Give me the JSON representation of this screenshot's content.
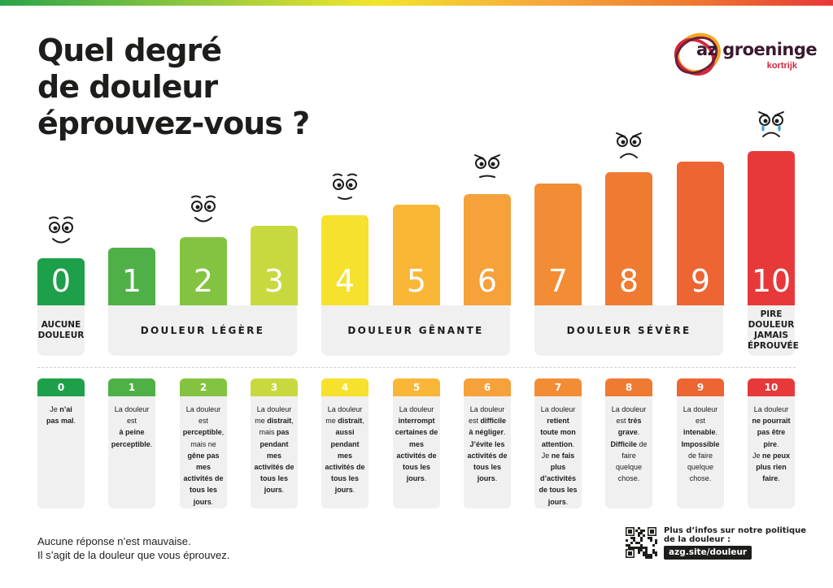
{
  "title_lines": [
    "Quel degré",
    "de douleur",
    "éprouvez-vous ?"
  ],
  "logo": {
    "brand": "az groeninge",
    "city": "kortrijk"
  },
  "chart_data": {
    "type": "bar",
    "categories": [
      "0",
      "1",
      "2",
      "3",
      "4",
      "5",
      "6",
      "7",
      "8",
      "9",
      "10"
    ],
    "values": [
      0,
      1,
      2,
      3,
      4,
      5,
      6,
      7,
      8,
      9,
      10
    ],
    "colors": [
      "#1ea04a",
      "#4fb048",
      "#84c341",
      "#c8d93f",
      "#f6e12c",
      "#f9b637",
      "#f6a13a",
      "#f28c35",
      "#ef7a32",
      "#ec6533",
      "#e7393a"
    ],
    "faces_at": [
      0,
      2,
      4,
      6,
      8,
      10
    ]
  },
  "bands": {
    "none": [
      "AUCUNE",
      "DOULEUR"
    ],
    "light": "DOULEUR LÉGÈRE",
    "bothersome": "DOULEUR GÊNANTE",
    "severe": "DOULEUR SÉVÈRE",
    "worst": [
      "PIRE",
      "DOULEUR",
      "JAMAIS",
      "ÉPROUVÉE"
    ]
  },
  "cards": [
    {
      "level": "0",
      "html": "Je <b>n’ai</b><br><b>pas mal</b>."
    },
    {
      "level": "1",
      "html": "La douleur<br>est<br><b>à peine</b><br><b>perceptible</b>."
    },
    {
      "level": "2",
      "html": "La douleur<br>est<br><b>perceptible</b>,<br>mais ne<br><b>gêne pas</b><br><b>mes</b><br><b>activités de</b><br><b>tous les</b><br><b>jours</b>."
    },
    {
      "level": "3",
      "html": "La douleur<br>me <b>distrait</b>,<br>mais <b>pas</b><br><b>pendant</b><br><b>mes</b><br><b>activités de</b><br><b>tous les</b><br><b>jours</b>."
    },
    {
      "level": "4",
      "html": "La douleur<br>me <b>distrait</b>,<br><b>aussi</b><br><b>pendant</b><br><b>mes</b><br><b>activités de</b><br><b>tous les</b><br><b>jours</b>."
    },
    {
      "level": "5",
      "html": "La douleur<br><b>interrompt</b><br><b>certaines de</b><br><b>mes</b><br><b>activités de</b><br><b>tous les</b><br><b>jours</b>."
    },
    {
      "level": "6",
      "html": "La douleur<br>est <b>difficile</b><br><b>à négliger</b>.<br><b>J’évite les</b><br><b>activités de</b><br><b>tous les</b><br><b>jours</b>."
    },
    {
      "level": "7",
      "html": "La douleur<br><b>retient</b><br><b>toute mon</b><br><b>attention</b>.<br>Je <b>ne fais</b><br><b>plus</b><br><b>d’activités</b><br><b>de tous les</b><br><b>jours</b>."
    },
    {
      "level": "8",
      "html": "La douleur<br>est <b>très</b><br><b>grave</b>.<br><b>Difficile</b> de<br>faire<br>quelque<br>chose."
    },
    {
      "level": "9",
      "html": "La douleur<br>est<br><b>intenable</b>.<br><b>Impossible</b><br>de faire<br>quelque<br>chose."
    },
    {
      "level": "10",
      "html": "La douleur<br><b>ne pourrait</b><br><b>pas être</b><br><b>pire</b>.<br>Je <b>ne peux</b><br><b>plus rien</b><br><b>faire</b>."
    }
  ],
  "footnote": [
    "Aucune réponse n’est mauvaise.",
    "Il s’agit de la douleur que vous éprouvez."
  ],
  "info": {
    "lines": [
      "Plus d’infos sur notre politique",
      "de la douleur :"
    ],
    "link": "azg.site/douleur"
  },
  "icons": {
    "qr": "qr-code-icon",
    "logo": "az-groeninge-logo-icon"
  }
}
